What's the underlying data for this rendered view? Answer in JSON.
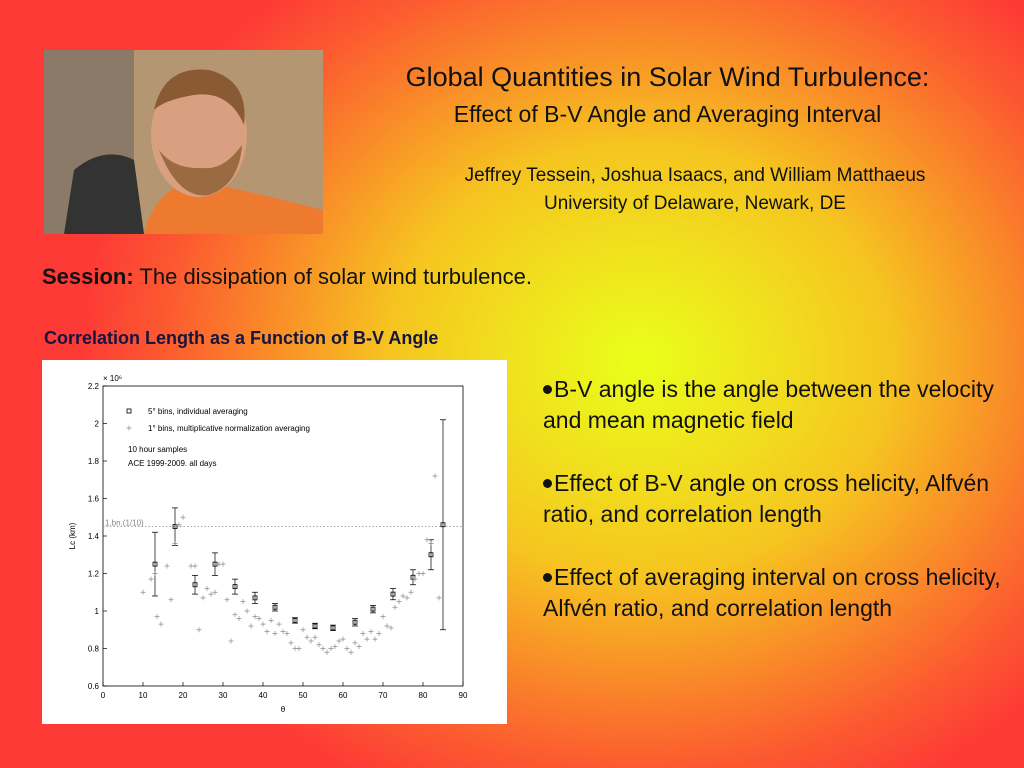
{
  "header": {
    "title": "Global Quantities in Solar Wind Turbulence:",
    "subtitle": "Effect of B-V Angle and Averaging Interval",
    "authors": "Jeffrey Tessein, Joshua Isaacs, and William Matthaeus",
    "affiliation": "University of Delaware, Newark, DE"
  },
  "session": {
    "label": "Session:",
    "text": "The dissipation of solar wind turbulence."
  },
  "chart_heading": "Correlation Length as a Function of B-V Angle",
  "chart_data": {
    "type": "scatter",
    "x_label": "θ",
    "y_label": "Lc (km)",
    "y_exponent": "× 10⁶",
    "xlim": [
      0,
      90
    ],
    "xticks": [
      0,
      10,
      20,
      30,
      40,
      50,
      60,
      70,
      80,
      90
    ],
    "ylim": [
      0.6,
      2.2
    ],
    "yticks": [
      0.6,
      0.8,
      1,
      1.2,
      1.4,
      1.6,
      1.8,
      2,
      2.2
    ],
    "annotations": [
      "10 hour samples",
      "ACE 1999-2009. all days"
    ],
    "reference_line": {
      "value": 1.45,
      "label": "1.bn.(1/10)"
    },
    "series": [
      {
        "name": "5° bins, individual averaging",
        "color": "#000000",
        "marker": "square",
        "x": [
          13,
          18,
          23,
          28,
          33,
          38,
          43,
          48,
          53,
          57.5,
          63,
          67.5,
          72.5,
          77.5,
          82,
          85
        ],
        "values": [
          1.25,
          1.45,
          1.14,
          1.25,
          1.13,
          1.07,
          1.02,
          0.95,
          0.92,
          0.91,
          0.94,
          1.01,
          1.09,
          1.18,
          1.3,
          1.46
        ],
        "errors": [
          0.17,
          0.1,
          0.05,
          0.06,
          0.04,
          0.03,
          0.02,
          0.015,
          0.015,
          0.015,
          0.02,
          0.02,
          0.03,
          0.04,
          0.08,
          0.56
        ]
      },
      {
        "name": "1° bins, multiplicative normalization averaging",
        "color": "#8c8c8c",
        "marker": "plus",
        "x": [
          10,
          12,
          13,
          13.5,
          14.5,
          16,
          17,
          18,
          19,
          20,
          22,
          23,
          24,
          25,
          26,
          27,
          28,
          29,
          30,
          31,
          32,
          33,
          34,
          35,
          36,
          37,
          38,
          39,
          40,
          41,
          42,
          43,
          44,
          45,
          46,
          47,
          48,
          49,
          50,
          51,
          52,
          53,
          54,
          55,
          56,
          57,
          58,
          59,
          60,
          61,
          62,
          63,
          64,
          65,
          66,
          67,
          68,
          69,
          70,
          71,
          72,
          73,
          74,
          75,
          76,
          77,
          78,
          79,
          80,
          81,
          82,
          83,
          84
        ],
        "values": [
          1.1,
          1.17,
          1.2,
          0.97,
          0.93,
          1.24,
          1.06,
          1.36,
          1.46,
          1.5,
          1.24,
          1.24,
          0.9,
          1.07,
          1.12,
          1.09,
          1.1,
          1.25,
          1.25,
          1.06,
          0.84,
          0.98,
          0.96,
          1.05,
          1.0,
          0.92,
          0.97,
          0.96,
          0.93,
          0.89,
          0.95,
          0.88,
          0.93,
          0.89,
          0.88,
          0.83,
          0.8,
          0.8,
          0.9,
          0.86,
          0.84,
          0.86,
          0.82,
          0.8,
          0.78,
          0.8,
          0.81,
          0.84,
          0.85,
          0.8,
          0.78,
          0.83,
          0.81,
          0.88,
          0.85,
          0.89,
          0.85,
          0.88,
          0.97,
          0.92,
          0.91,
          1.02,
          1.05,
          1.08,
          1.07,
          1.1,
          1.17,
          1.2,
          1.2,
          1.38,
          1.36,
          1.72,
          1.07
        ]
      }
    ]
  },
  "bullets": [
    "B-V angle is the angle between the velocity and mean magnetic field",
    "Effect of B-V angle on cross helicity, Alfvén ratio, and correlation length",
    "Effect of averaging interval on cross helicity, Alfvén ratio, and correlation length"
  ]
}
